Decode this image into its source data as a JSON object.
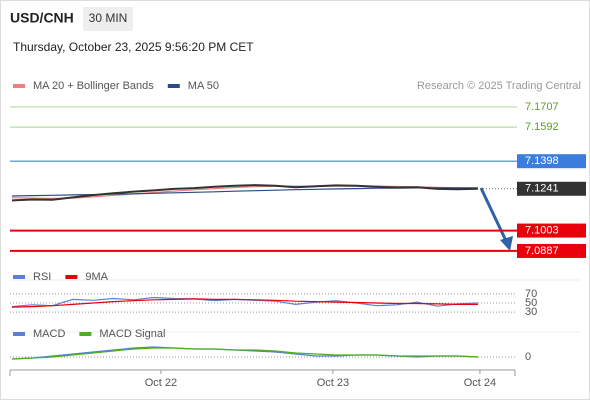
{
  "header": {
    "symbol": "USD/CNH",
    "interval": "30 MIN",
    "datetime": "Thursday, October 23, 2025 9:56:20 PM CET",
    "credit": "Research © 2025 Trading Central"
  },
  "chart_data": [
    {
      "type": "line",
      "panel": "price",
      "xlim": [
        -0.1,
        24.83
      ],
      "xticks": [
        {
          "value": 7.35,
          "label": "Oct 22"
        },
        {
          "value": 15.84,
          "label": "Oct 23"
        },
        {
          "value": 23.1,
          "label": "Oct 24"
        }
      ],
      "x": [
        0,
        1,
        2,
        3,
        4,
        5,
        6,
        7,
        8,
        9,
        10,
        11,
        12,
        13,
        14,
        15,
        16,
        17,
        18,
        19,
        20,
        21,
        22,
        23
      ],
      "ylim": [
        7.0824,
        7.1775
      ],
      "price": {
        "color": "#333333",
        "values": [
          7.1175,
          7.118,
          7.1178,
          7.1192,
          7.1205,
          7.1215,
          7.1225,
          7.1232,
          7.124,
          7.1245,
          7.1252,
          7.1258,
          7.1262,
          7.1258,
          7.125,
          7.1255,
          7.126,
          7.1258,
          7.1252,
          7.1248,
          7.125,
          7.124,
          7.1238,
          7.1241
        ]
      },
      "series": [
        {
          "name": "MA 20 + Bollinger Bands",
          "color": "#f08080",
          "values": [
            7.119,
            7.1188,
            7.1186,
            7.1188,
            7.1195,
            7.1203,
            7.1212,
            7.122,
            7.1228,
            7.1235,
            7.1242,
            7.1248,
            7.1253,
            7.1256,
            7.1256,
            7.1255,
            7.1256,
            7.1257,
            7.1256,
            7.1254,
            7.1252,
            7.1249,
            7.1246,
            7.1244
          ]
        },
        {
          "name": "MA 50",
          "color": "#2a4a8a",
          "values": [
            7.12,
            7.1202,
            7.1204,
            7.1206,
            7.1208,
            7.121,
            7.1212,
            7.1215,
            7.1218,
            7.1221,
            7.1224,
            7.1227,
            7.123,
            7.1233,
            7.1236,
            7.1238,
            7.124,
            7.1242,
            7.1244,
            7.1245,
            7.1246,
            7.1246,
            7.1246,
            7.1246
          ]
        }
      ],
      "levels": [
        {
          "value": 7.1707,
          "color": "#5aa02c",
          "boxed": false,
          "line": "#b8dca0"
        },
        {
          "value": 7.1592,
          "color": "#5aa02c",
          "boxed": false,
          "line": "#b8dca0"
        },
        {
          "value": 7.1398,
          "color": "#3b7ddd",
          "boxed": true,
          "line": "#3b7ddd"
        },
        {
          "value": 7.1003,
          "color": "#e8000b",
          "boxed": true,
          "line": "#e8000b"
        },
        {
          "value": 7.0887,
          "color": "#e8000b",
          "boxed": true,
          "line": "#e8000b"
        }
      ],
      "last": {
        "value": 7.1241,
        "color": "#333333"
      }
    },
    {
      "type": "line",
      "panel": "rsi",
      "ylim": [
        17,
        83
      ],
      "yticks": [
        70,
        50,
        30
      ],
      "xlim": [
        -0.1,
        24.83
      ],
      "x": [
        0,
        1,
        2,
        3,
        4,
        5,
        6,
        7,
        8,
        9,
        10,
        11,
        12,
        13,
        14,
        15,
        16,
        17,
        18,
        19,
        20,
        21,
        22,
        23
      ],
      "series": [
        {
          "name": "RSI",
          "color": "#5b7fd6",
          "values": [
            42,
            46,
            44,
            58,
            56,
            60,
            57,
            62,
            60,
            59,
            55,
            58,
            56,
            54,
            47,
            52,
            55,
            50,
            44,
            46,
            52,
            43,
            48,
            50
          ]
        },
        {
          "name": "9MA",
          "color": "#e8000b",
          "values": [
            41,
            42,
            44,
            47,
            50,
            53,
            55,
            57,
            58,
            59,
            58,
            58,
            57,
            56,
            54,
            53,
            52,
            51,
            50,
            49,
            49,
            48,
            47,
            47
          ]
        }
      ]
    },
    {
      "type": "line",
      "panel": "macd",
      "ylim": [
        -0.0013,
        0.0017
      ],
      "yticks": [
        0
      ],
      "xlim": [
        -0.1,
        24.83
      ],
      "x": [
        0,
        1,
        2,
        3,
        4,
        5,
        6,
        7,
        8,
        9,
        10,
        11,
        12,
        13,
        14,
        15,
        16,
        17,
        18,
        19,
        20,
        21,
        22,
        23
      ],
      "series": [
        {
          "name": "MACD",
          "color": "#5b7fd6",
          "values": [
            -0.0002,
            -0.0001,
            0.0001,
            0.0003,
            0.0005,
            0.0007,
            0.0009,
            0.001,
            0.0009,
            0.0008,
            0.0008,
            0.0007,
            0.0006,
            0.0005,
            0.0003,
            0.0001,
            0.0001,
            0.0002,
            0.0002,
            0.0001,
            0,
            0.0001,
            0.0001,
            0
          ]
        },
        {
          "name": "MACD Signal",
          "color": "#4caf1c",
          "values": [
            -0.0002,
            -0.0001,
            0,
            0.0002,
            0.0004,
            0.0006,
            0.0008,
            0.0009,
            0.0009,
            0.0008,
            0.0008,
            0.0007,
            0.0007,
            0.0006,
            0.0004,
            0.0003,
            0.0002,
            0.0002,
            0.0002,
            0.0001,
            0.0001,
            0.0001,
            0.0001,
            0
          ]
        }
      ]
    }
  ]
}
